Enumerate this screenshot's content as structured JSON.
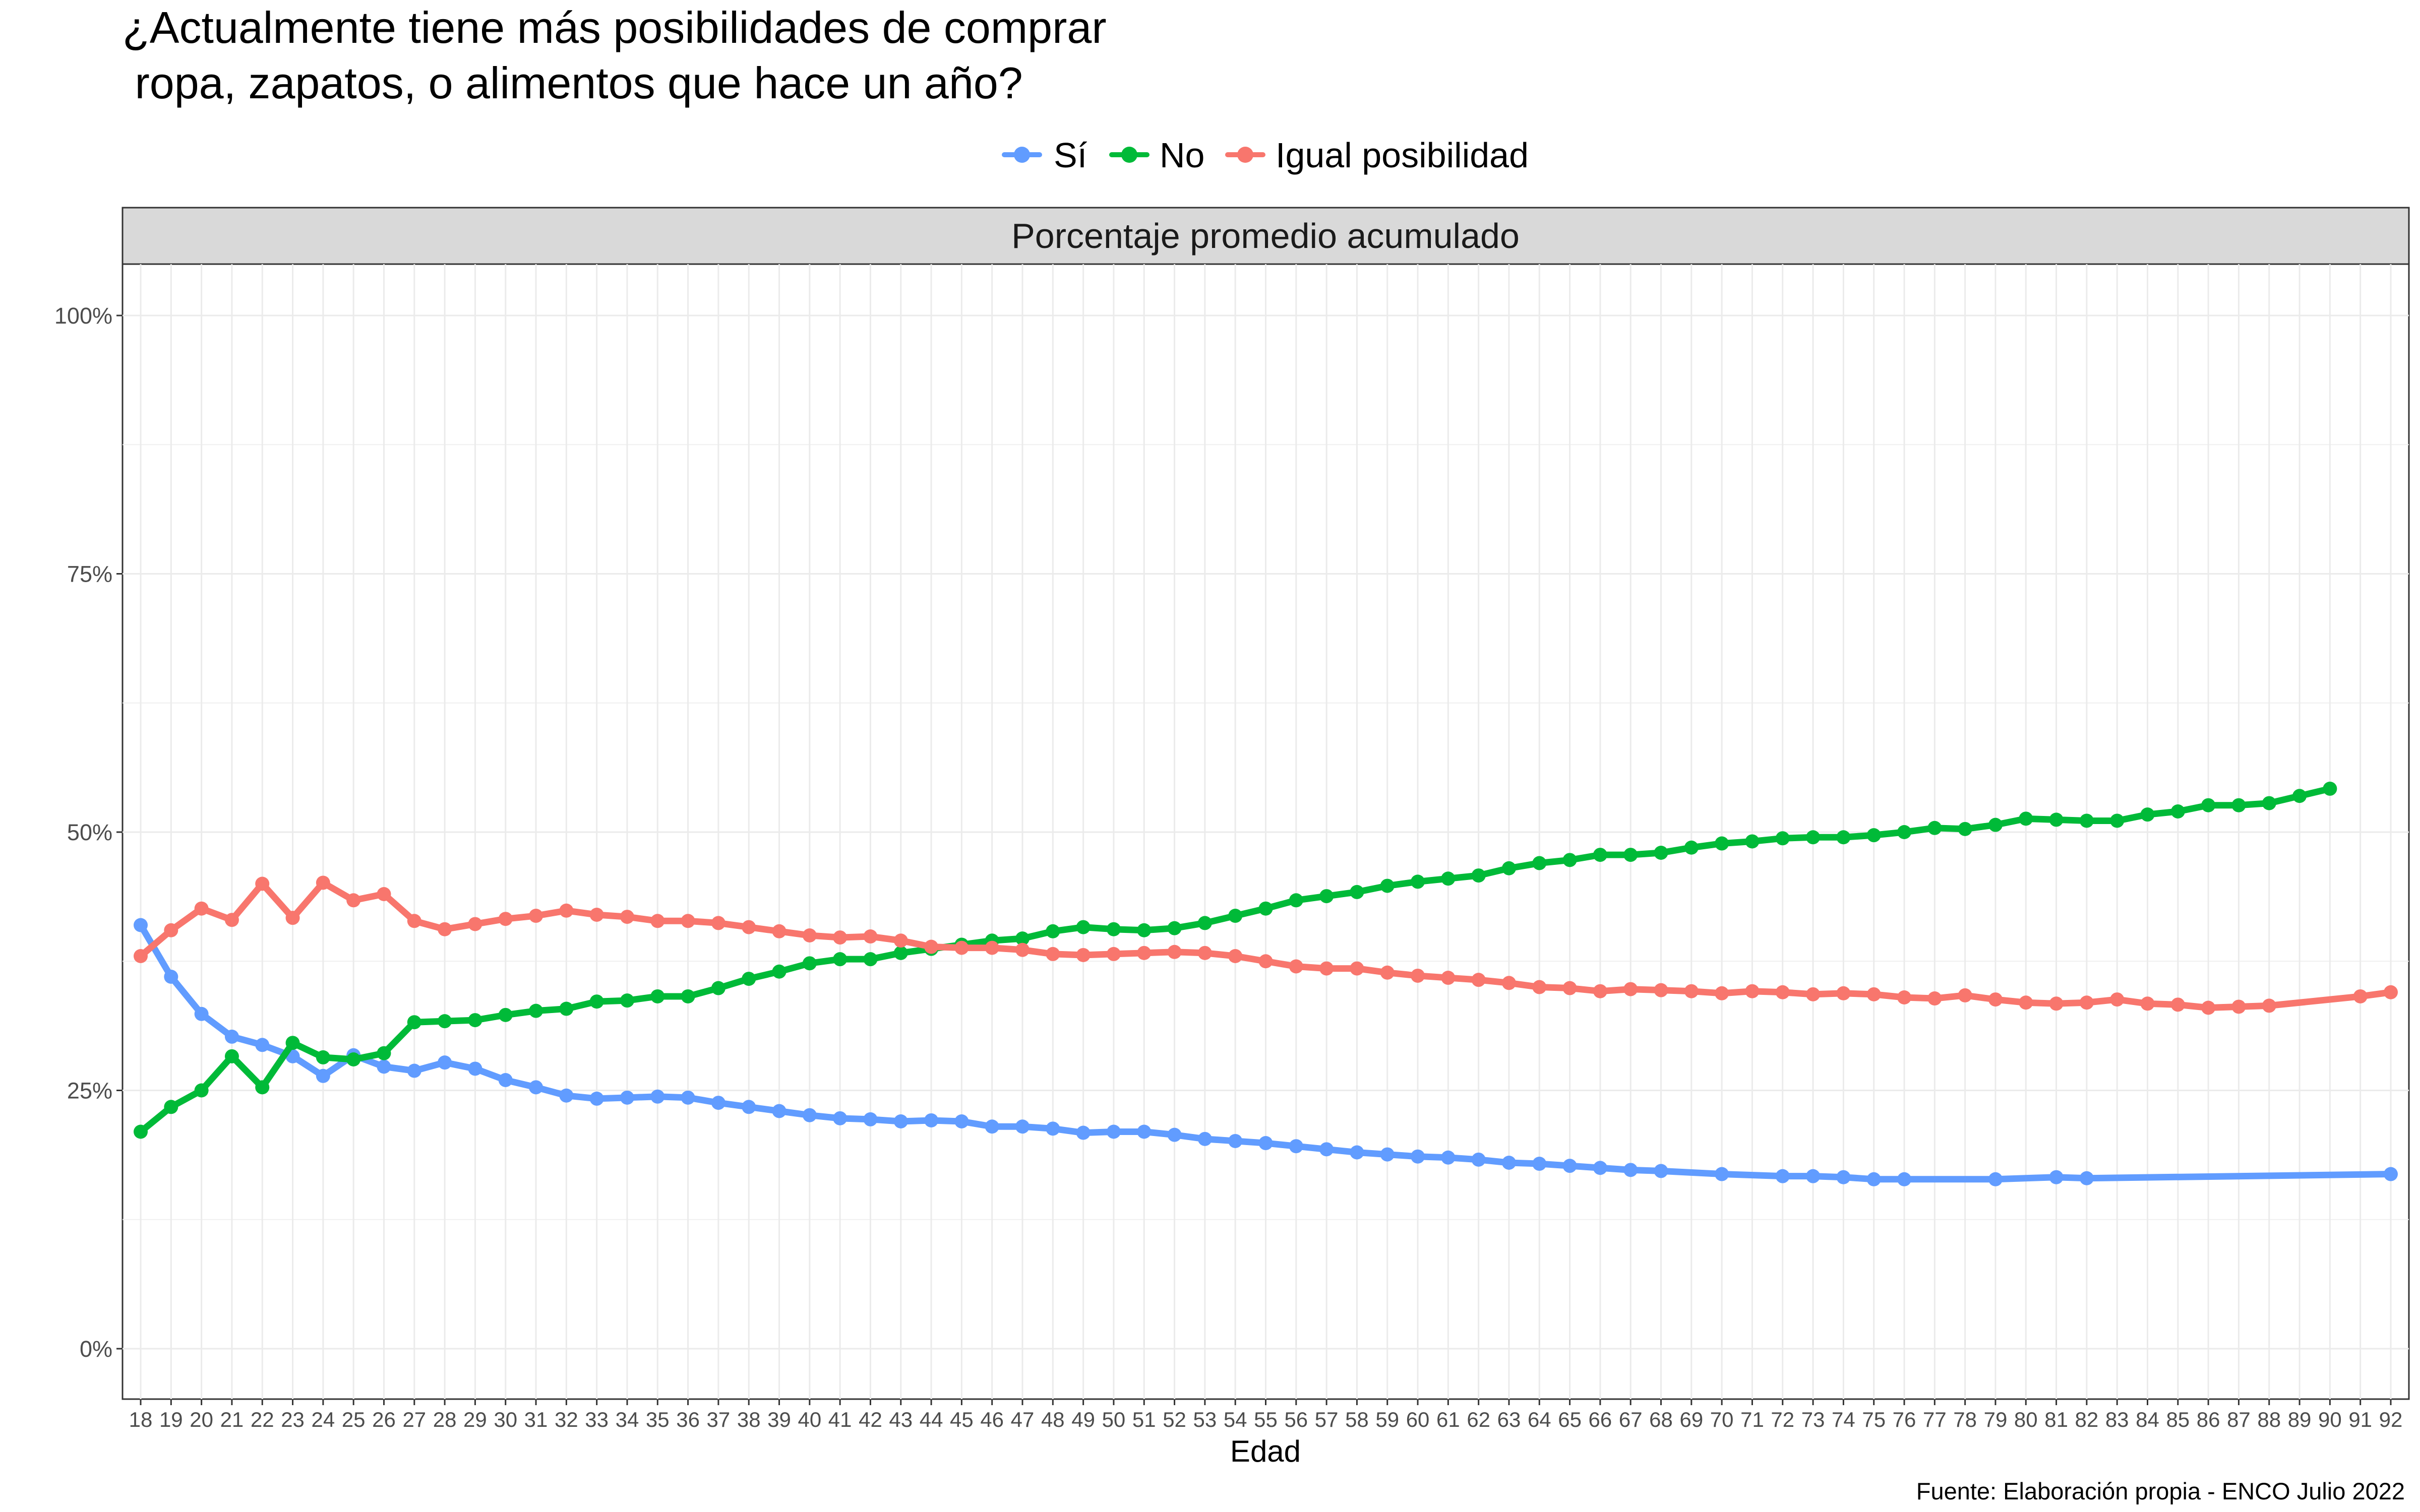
{
  "chart_data": {
    "type": "line",
    "title_lines": [
      "¿Actualmente tiene más posibilidades de comprar",
      " ropa, zapatos, o alimentos que hace un año?"
    ],
    "strip_label": "Porcentaje promedio acumulado",
    "xlabel": "Edad",
    "ylabel": "",
    "ylim": [
      0,
      100
    ],
    "y_ticks": [
      0,
      25,
      50,
      75,
      100
    ],
    "y_tick_labels": [
      "0%",
      "25%",
      "50%",
      "75%",
      "100%"
    ],
    "x_range": [
      18,
      92
    ],
    "caption": "Fuente: Elaboración propia - ENCO Julio 2022",
    "grid": true,
    "legend_position": "top",
    "series": [
      {
        "name": "Sí",
        "color": "#619CFF",
        "x": [
          18,
          19,
          20,
          21,
          22,
          23,
          24,
          25,
          26,
          27,
          28,
          29,
          30,
          31,
          32,
          33,
          34,
          35,
          36,
          37,
          38,
          39,
          40,
          41,
          42,
          43,
          44,
          45,
          46,
          47,
          48,
          49,
          50,
          51,
          52,
          53,
          54,
          55,
          56,
          57,
          58,
          59,
          60,
          61,
          62,
          63,
          64,
          65,
          66,
          67,
          68,
          70,
          72,
          73,
          74,
          75,
          76,
          79,
          81,
          82,
          92
        ],
        "values": [
          41.0,
          36.0,
          32.4,
          30.2,
          29.4,
          28.3,
          26.4,
          28.4,
          27.3,
          26.9,
          27.7,
          27.1,
          26.0,
          25.3,
          24.5,
          24.2,
          24.3,
          24.4,
          24.3,
          23.8,
          23.4,
          23.0,
          22.6,
          22.3,
          22.2,
          22.0,
          22.1,
          22.0,
          21.5,
          21.5,
          21.3,
          20.9,
          21.0,
          21.0,
          20.7,
          20.3,
          20.1,
          19.9,
          19.6,
          19.3,
          19.0,
          18.8,
          18.6,
          18.5,
          18.3,
          18.0,
          17.9,
          17.7,
          17.5,
          17.3,
          17.2,
          16.9,
          16.7,
          16.7,
          16.6,
          16.4,
          16.4,
          16.4,
          16.6,
          16.5,
          16.9
        ]
      },
      {
        "name": "No",
        "color": "#00BA38",
        "x": [
          18,
          19,
          20,
          21,
          22,
          23,
          24,
          25,
          26,
          27,
          28,
          29,
          30,
          31,
          32,
          33,
          34,
          35,
          36,
          37,
          38,
          39,
          40,
          41,
          42,
          43,
          44,
          45,
          46,
          47,
          48,
          49,
          50,
          51,
          52,
          53,
          54,
          55,
          56,
          57,
          58,
          59,
          60,
          61,
          62,
          63,
          64,
          65,
          66,
          67,
          68,
          69,
          70,
          71,
          72,
          73,
          74,
          75,
          76,
          77,
          78,
          79,
          80,
          81,
          82,
          83,
          84,
          85,
          86,
          87,
          88,
          89,
          90
        ],
        "values": [
          21.0,
          23.4,
          25.0,
          28.3,
          25.3,
          29.6,
          28.2,
          28.0,
          28.6,
          31.6,
          31.7,
          31.8,
          32.3,
          32.7,
          32.9,
          33.6,
          33.7,
          34.1,
          34.1,
          34.9,
          35.8,
          36.5,
          37.3,
          37.7,
          37.7,
          38.3,
          38.7,
          39.1,
          39.5,
          39.7,
          40.4,
          40.8,
          40.6,
          40.5,
          40.7,
          41.2,
          41.9,
          42.6,
          43.4,
          43.8,
          44.2,
          44.8,
          45.2,
          45.5,
          45.8,
          46.5,
          47.0,
          47.3,
          47.8,
          47.8,
          48.0,
          48.5,
          48.9,
          49.1,
          49.4,
          49.5,
          49.5,
          49.7,
          50.0,
          50.4,
          50.3,
          50.7,
          51.3,
          51.2,
          51.1,
          51.1,
          51.7,
          52.0,
          52.6,
          52.6,
          52.8,
          53.5,
          54.2
        ]
      },
      {
        "name": "Igual posibilidad",
        "color": "#F8766D",
        "x": [
          18,
          19,
          20,
          21,
          22,
          23,
          24,
          25,
          26,
          27,
          28,
          29,
          30,
          31,
          32,
          33,
          34,
          35,
          36,
          37,
          38,
          39,
          40,
          41,
          42,
          43,
          44,
          45,
          46,
          47,
          48,
          49,
          50,
          51,
          52,
          53,
          54,
          55,
          56,
          57,
          58,
          59,
          60,
          61,
          62,
          63,
          64,
          65,
          66,
          67,
          68,
          69,
          70,
          71,
          72,
          73,
          74,
          75,
          76,
          77,
          78,
          79,
          80,
          81,
          82,
          83,
          84,
          85,
          86,
          87,
          88,
          91,
          92
        ],
        "values": [
          38.0,
          40.5,
          42.6,
          41.5,
          45.0,
          41.7,
          45.1,
          43.4,
          44.0,
          41.4,
          40.6,
          41.1,
          41.6,
          41.9,
          42.4,
          42.0,
          41.8,
          41.4,
          41.4,
          41.2,
          40.8,
          40.4,
          40.0,
          39.8,
          39.9,
          39.5,
          38.9,
          38.8,
          38.8,
          38.6,
          38.2,
          38.1,
          38.2,
          38.3,
          38.4,
          38.3,
          38.0,
          37.5,
          37.0,
          36.8,
          36.8,
          36.4,
          36.1,
          35.9,
          35.7,
          35.4,
          35.0,
          34.9,
          34.6,
          34.8,
          34.7,
          34.6,
          34.4,
          34.6,
          34.5,
          34.3,
          34.4,
          34.3,
          34.0,
          33.9,
          34.2,
          33.8,
          33.5,
          33.4,
          33.5,
          33.8,
          33.4,
          33.3,
          33.0,
          33.1,
          33.2,
          34.1,
          34.5
        ]
      }
    ]
  }
}
